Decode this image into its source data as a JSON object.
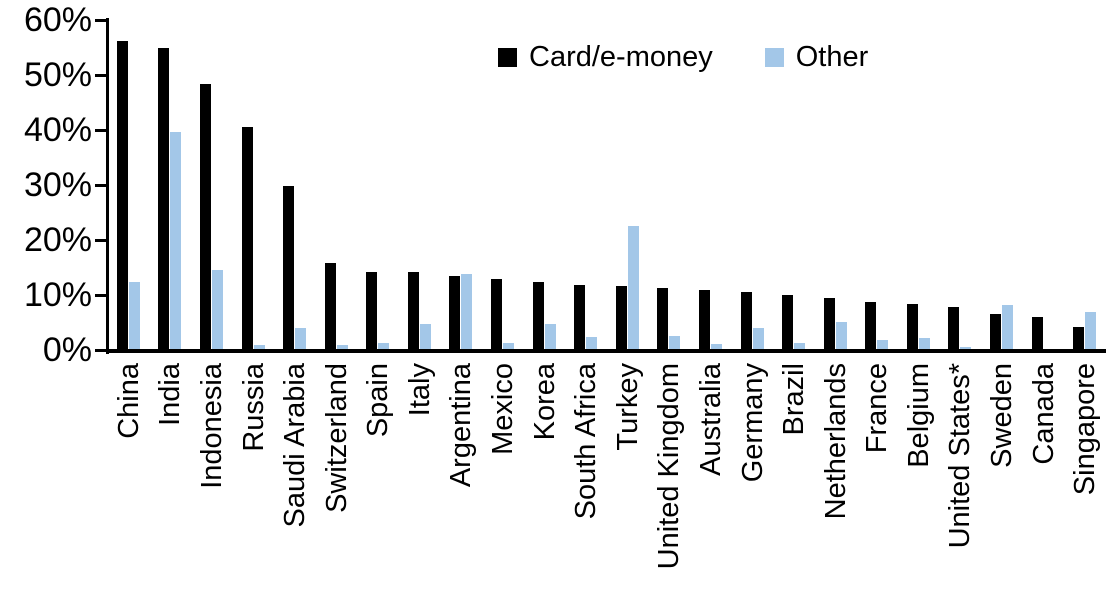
{
  "chart_data": {
    "type": "bar",
    "title": "",
    "xlabel": "",
    "ylabel": "",
    "ylim": [
      0,
      60
    ],
    "y_ticks": [
      "0%",
      "10%",
      "20%",
      "30%",
      "40%",
      "50%",
      "60%"
    ],
    "grid": false,
    "legend_position": "top-center",
    "categories": [
      "China",
      "India",
      "Indonesia",
      "Russia",
      "Saudi Arabia",
      "Switzerland",
      "Spain",
      "Italy",
      "Argentina",
      "Mexico",
      "Korea",
      "South Africa",
      "Turkey",
      "United Kingdom",
      "Australia",
      "Germany",
      "Brazil",
      "Netherlands",
      "France",
      "Belgium",
      "United States*",
      "Sweden",
      "Canada",
      "Singapore"
    ],
    "series": [
      {
        "name": "Card/e-money",
        "color": "#000000",
        "values": [
          56.2,
          55.0,
          48.3,
          40.5,
          29.8,
          15.8,
          14.2,
          14.1,
          13.5,
          13.0,
          12.3,
          11.9,
          11.7,
          11.3,
          11.0,
          10.6,
          10.0,
          9.4,
          8.8,
          8.4,
          7.9,
          6.6,
          6.0,
          4.1
        ]
      },
      {
        "name": "Other",
        "color": "#A3C7E8",
        "values": [
          12.3,
          39.7,
          14.6,
          1.0,
          4.0,
          0.9,
          1.3,
          4.7,
          13.9,
          1.3,
          4.7,
          2.4,
          22.5,
          2.5,
          1.1,
          4.0,
          1.3,
          5.1,
          1.8,
          2.1,
          0.5,
          8.2,
          0.0,
          6.9
        ]
      }
    ]
  }
}
